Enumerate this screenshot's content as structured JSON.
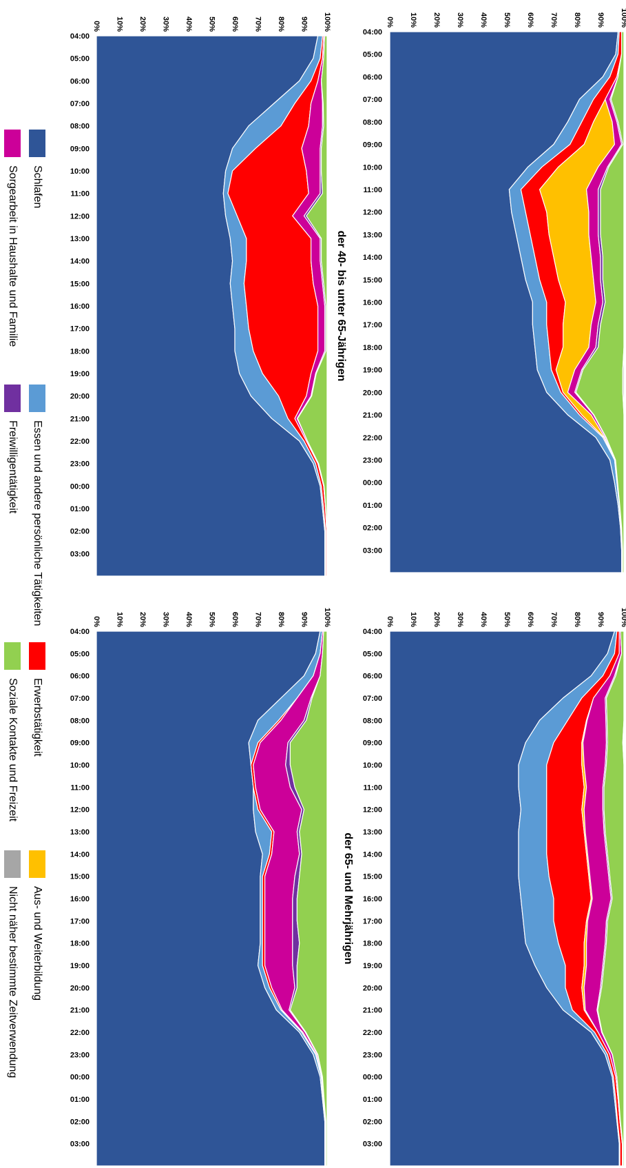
{
  "series_meta": [
    {
      "name": "Schlafen",
      "color": "#2f5597"
    },
    {
      "name": "Essen und andere persönliche Tätigkeiten",
      "color": "#5b9bd5"
    },
    {
      "name": "Erwerbstätigkeit",
      "color": "#ff0000"
    },
    {
      "name": "Aus- und Weiterbildung",
      "color": "#ffc000"
    },
    {
      "name": "Sorgearbeit in Haushalte und Familie",
      "color": "#cc0099"
    },
    {
      "name": "Freiwilligentätigkeit",
      "color": "#7030a0"
    },
    {
      "name": "Soziale Kontakte und Freizeit",
      "color": "#92d050"
    },
    {
      "name": "Nicht näher bestimmte Zeitverwendung",
      "color": "#a6a6a6"
    }
  ],
  "legend_order": [
    0,
    1,
    2,
    3,
    4,
    5,
    6,
    7
  ],
  "chart_data": [
    {
      "type": "area",
      "stacked": true,
      "title": "",
      "xlabel": "",
      "ylabel": "",
      "ylim": [
        0,
        100
      ],
      "yticks": [
        "0%",
        "10%",
        "20%",
        "30%",
        "40%",
        "50%",
        "60%",
        "70%",
        "80%",
        "90%",
        "100%"
      ],
      "x": [
        "04:00",
        "05:00",
        "06:00",
        "07:00",
        "08:00",
        "09:00",
        "10:00",
        "11:00",
        "12:00",
        "13:00",
        "14:00",
        "15:00",
        "16:00",
        "17:00",
        "18:00",
        "19:00",
        "20:00",
        "21:00",
        "22:00",
        "23:00",
        "00:00",
        "01:00",
        "02:00",
        "03:00"
      ],
      "series": [
        {
          "values": [
            97.5,
            96.5,
            91,
            81,
            76,
            70,
            59,
            51,
            52,
            54,
            56,
            58,
            61,
            61,
            62,
            63,
            67,
            76,
            88,
            94,
            96,
            97.5,
            98.5,
            99
          ]
        },
        {
          "values": [
            0.5,
            1,
            3,
            6,
            6,
            7,
            6,
            5,
            6,
            6,
            6,
            6,
            6,
            6,
            6,
            6,
            6,
            5,
            3,
            2,
            1,
            0.5,
            0.3,
            0.2
          ]
        },
        {
          "values": [
            1,
            1.5,
            3,
            5,
            5,
            6,
            7,
            8,
            9,
            8,
            8,
            8,
            8,
            7,
            6,
            2,
            1,
            1,
            0.5,
            0.2,
            0.2,
            0.2,
            0.2,
            0.2
          ]
        },
        {
          "values": [
            0,
            0,
            0,
            0,
            8,
            13,
            17,
            20,
            18,
            17,
            16,
            15,
            13,
            12,
            11,
            8,
            2,
            4,
            0.3,
            0,
            0,
            0,
            0,
            0
          ]
        },
        {
          "values": [
            0,
            0,
            0.5,
            2,
            2,
            3,
            4,
            5,
            4,
            4,
            4,
            3,
            3,
            3,
            3,
            3,
            3,
            1,
            0.5,
            0.2,
            0.1,
            0,
            0,
            0
          ]
        },
        {
          "values": [
            0,
            0,
            0,
            0.5,
            0.5,
            0.5,
            0.5,
            1,
            1,
            1,
            1,
            1,
            1,
            1,
            1,
            0.5,
            0.5,
            0.2,
            0.1,
            0,
            0,
            0,
            0,
            0
          ]
        },
        {
          "values": [
            1,
            1,
            2.5,
            5.5,
            2.5,
            0.5,
            6.5,
            10,
            10,
            10,
            9,
            9,
            8,
            10,
            11,
            17,
            20,
            12.8,
            7.6,
            3.6,
            2.7,
            1.8,
            1,
            0.6
          ]
        },
        {
          "values": [
            0,
            0,
            0,
            0,
            0,
            0,
            0,
            0,
            0,
            0,
            0,
            0,
            0,
            0,
            0,
            0.5,
            0.5,
            0,
            0,
            0,
            0,
            0,
            0,
            0
          ]
        }
      ]
    },
    {
      "type": "area",
      "stacked": true,
      "title": "der 65- und Mehrjährigen",
      "xlabel": "",
      "ylabel": "",
      "ylim": [
        0,
        100
      ],
      "yticks": [
        "0%",
        "10%",
        "20%",
        "30%",
        "40%",
        "50%",
        "60%",
        "70%",
        "80%",
        "90%",
        "100%"
      ],
      "x": [
        "04:00",
        "05:00",
        "06:00",
        "07:00",
        "08:00",
        "09:00",
        "10:00",
        "11:00",
        "12:00",
        "13:00",
        "14:00",
        "15:00",
        "16:00",
        "17:00",
        "18:00",
        "19:00",
        "20:00",
        "21:00",
        "22:00",
        "23:00",
        "00:00",
        "01:00",
        "02:00",
        "03:00"
      ],
      "series": [
        {
          "values": [
            96,
            93,
            86,
            74,
            64,
            58,
            55,
            55,
            56,
            55,
            55,
            55,
            56,
            57,
            58,
            62,
            67,
            74,
            86,
            92,
            95,
            96,
            97,
            98
          ]
        },
        {
          "values": [
            1,
            3,
            5,
            8,
            12,
            12,
            12,
            12,
            11,
            12,
            12,
            13,
            14,
            13,
            14,
            13,
            8,
            4,
            1.5,
            1,
            0.5,
            0.5,
            0.3,
            0.3
          ]
        },
        {
          "values": [
            1,
            2,
            3,
            5,
            8,
            12,
            15,
            16,
            15,
            16,
            17,
            17,
            16,
            14,
            11,
            8,
            7,
            5,
            1.5,
            1,
            1,
            1,
            1,
            1
          ]
        },
        {
          "values": [
            0,
            0,
            0,
            0,
            0.3,
            0.5,
            1,
            1,
            1,
            0.5,
            0.5,
            0.5,
            0.5,
            0.5,
            1,
            1,
            1,
            0.5,
            0,
            0,
            0,
            0,
            0,
            0
          ]
        },
        {
          "values": [
            0.5,
            1,
            2,
            5,
            8,
            10,
            9,
            7,
            8,
            8,
            8,
            8,
            8,
            8,
            8,
            7,
            7,
            5,
            1.5,
            1,
            0.5,
            0.3,
            0.2,
            0.2
          ]
        },
        {
          "values": [
            0,
            0,
            0.5,
            0.5,
            0.5,
            0.5,
            0.5,
            0.5,
            0.5,
            0.5,
            0.5,
            0.5,
            0.5,
            0.5,
            0.5,
            0.5,
            0.5,
            0.3,
            0.2,
            0.1,
            0,
            0,
            0,
            0
          ]
        },
        {
          "values": [
            1.5,
            1,
            3.5,
            7.5,
            7.2,
            6.5,
            7.5,
            8.5,
            8.5,
            8,
            7,
            6,
            5,
            7,
            7.5,
            8.5,
            9.5,
            11.2,
            9.3,
            4.9,
            3,
            2.2,
            1.5,
            0.5
          ]
        },
        {
          "values": [
            0,
            0,
            0,
            0,
            0,
            0,
            0,
            0,
            0,
            0,
            0,
            0,
            0,
            0,
            0,
            0,
            0,
            0,
            0,
            0,
            0,
            0,
            0,
            0
          ]
        }
      ]
    },
    {
      "type": "area",
      "stacked": true,
      "title": "der 40- bis unter 65-Jährigen",
      "xlabel": "",
      "ylabel": "",
      "ylim": [
        0,
        100
      ],
      "yticks": [
        "0%",
        "10%",
        "20%",
        "30%",
        "40%",
        "50%",
        "60%",
        "70%",
        "80%",
        "90%",
        "100%"
      ],
      "x": [
        "04:00",
        "05:00",
        "06:00",
        "07:00",
        "08:00",
        "09:00",
        "10:00",
        "11:00",
        "12:00",
        "13:00",
        "14:00",
        "15:00",
        "16:00",
        "17:00",
        "18:00",
        "19:00",
        "20:00",
        "21:00",
        "22:00",
        "23:00",
        "00:00",
        "01:00",
        "02:00",
        "03:00"
      ],
      "series": [
        {
          "values": [
            96,
            94,
            88,
            77,
            66,
            59,
            56,
            55,
            56,
            58,
            59,
            58,
            59,
            60,
            60,
            62,
            67,
            76,
            88,
            94,
            97,
            98,
            99,
            99
          ]
        },
        {
          "values": [
            2,
            3,
            5,
            9,
            14,
            10,
            3,
            2,
            5,
            7,
            6,
            6,
            6,
            6,
            8,
            10,
            12,
            7,
            2,
            1,
            0.5,
            0.5,
            0.3,
            0.3
          ]
        },
        {
          "values": [
            0.5,
            1,
            3,
            7,
            12,
            20,
            32,
            35,
            24,
            28,
            28,
            30,
            31,
            30,
            28,
            21,
            12,
            3,
            1,
            1,
            1,
            0.8,
            0.5,
            0.5
          ]
        },
        {
          "values": [
            0,
            0,
            0,
            0,
            0,
            0,
            0,
            0,
            0,
            0,
            0,
            0,
            0,
            0,
            0,
            0,
            0,
            0,
            0,
            0,
            0,
            0,
            0,
            0
          ]
        },
        {
          "values": [
            0.5,
            0.5,
            1.5,
            5,
            6,
            8,
            6,
            5,
            5,
            4,
            4,
            4,
            3,
            3,
            3,
            2,
            2,
            1,
            0.5,
            0.3,
            0.2,
            0.1,
            0.1,
            0.1
          ]
        },
        {
          "values": [
            0,
            0,
            0,
            0.3,
            0.5,
            0.5,
            0.5,
            1,
            1,
            0.5,
            0.5,
            0.5,
            0.5,
            0.5,
            0.5,
            0.3,
            0.3,
            0.2,
            0,
            0,
            0,
            0,
            0,
            0
          ]
        },
        {
          "values": [
            1,
            1.5,
            2.5,
            1.7,
            1.5,
            2.5,
            2.5,
            2,
            9,
            2.5,
            2.5,
            1.5,
            0.5,
            0.5,
            0.5,
            4.7,
            6.7,
            12.8,
            8.5,
            3.7,
            1.3,
            0.6,
            0.1,
            0.1
          ]
        },
        {
          "values": [
            0,
            0,
            0,
            0,
            0,
            0,
            0,
            0,
            0,
            0,
            0,
            0,
            0,
            0,
            0,
            0,
            0,
            0,
            0,
            0,
            0,
            0,
            0,
            0
          ]
        }
      ]
    },
    {
      "type": "area",
      "stacked": true,
      "title": "",
      "xlabel": "",
      "ylabel": "",
      "ylim": [
        0,
        100
      ],
      "yticks": [
        "0%",
        "10%",
        "20%",
        "30%",
        "40%",
        "50%",
        "60%",
        "70%",
        "80%",
        "90%",
        "100%"
      ],
      "x": [
        "04:00",
        "05:00",
        "06:00",
        "07:00",
        "08:00",
        "09:00",
        "10:00",
        "11:00",
        "12:00",
        "13:00",
        "14:00",
        "15:00",
        "16:00",
        "17:00",
        "18:00",
        "19:00",
        "20:00",
        "21:00",
        "22:00",
        "23:00",
        "00:00",
        "01:00",
        "02:00",
        "03:00"
      ],
      "series": [
        {
          "values": [
            97,
            95,
            90,
            80,
            70,
            66,
            67,
            68,
            68,
            69,
            72,
            71,
            71,
            71,
            71,
            70,
            73,
            78,
            88,
            94,
            97,
            98,
            99,
            99
          ]
        },
        {
          "values": [
            1,
            2,
            4,
            7,
            9,
            4,
            0,
            0,
            2,
            7,
            3,
            1,
            1,
            1,
            1,
            2,
            2,
            2,
            1,
            1,
            0.5,
            0.3,
            0.2,
            0.2
          ]
        },
        {
          "values": [
            0,
            0,
            0,
            0,
            1,
            1,
            1,
            1,
            1,
            1,
            1,
            1,
            1,
            1,
            1,
            1,
            1,
            0.5,
            0.5,
            0.3,
            0.2,
            0.2,
            0.1,
            0.1
          ]
        },
        {
          "values": [
            0,
            0,
            0,
            0,
            0,
            0,
            0,
            0,
            0,
            0,
            0,
            0,
            0,
            0,
            0,
            0,
            0,
            0,
            0,
            0,
            0,
            0,
            0,
            0
          ]
        },
        {
          "values": [
            0.5,
            1,
            3,
            6,
            10,
            12,
            14,
            15,
            18,
            10,
            12,
            13,
            12,
            12,
            12,
            12,
            10,
            3,
            1,
            0.5,
            0.3,
            0.2,
            0.2,
            0.2
          ]
        },
        {
          "values": [
            0,
            0,
            0,
            0.5,
            1,
            1,
            2,
            2,
            1,
            1,
            1,
            2,
            2,
            2,
            3,
            2,
            1,
            0.5,
            0.3,
            0.2,
            0,
            0,
            0,
            0
          ]
        },
        {
          "values": [
            1.5,
            2,
            3,
            6.5,
            9,
            16,
            16,
            14,
            10,
            12,
            11,
            12,
            13,
            13,
            12,
            13,
            13,
            16,
            9.2,
            4,
            2,
            1.3,
            0.5,
            0.5
          ]
        },
        {
          "values": [
            0,
            0,
            0,
            0,
            0,
            0,
            0,
            0,
            0,
            0,
            0,
            0,
            0,
            0,
            0,
            0,
            0,
            0,
            0,
            0,
            0,
            0,
            0,
            0
          ]
        }
      ]
    }
  ]
}
